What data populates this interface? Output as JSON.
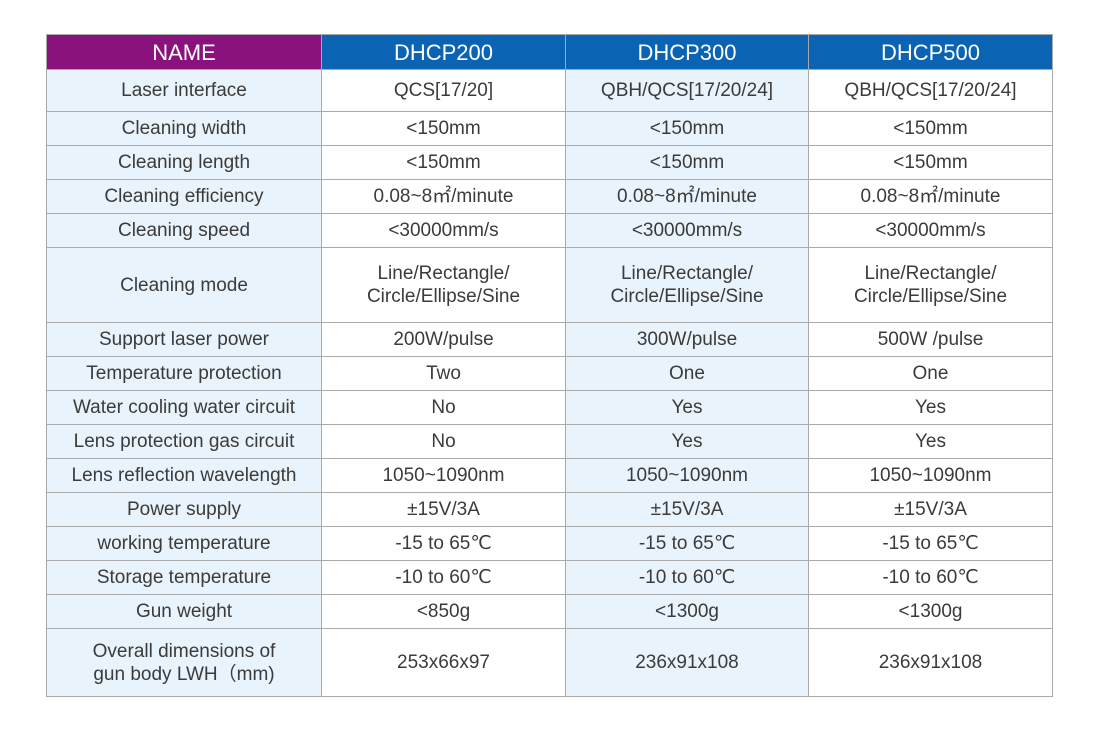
{
  "header": {
    "name_label": "NAME",
    "models": [
      "DHCP200",
      "DHCP300",
      "DHCP500"
    ]
  },
  "rows": [
    {
      "label": [
        "Laser interface"
      ],
      "values": [
        [
          "QCS[17/20]"
        ],
        [
          "QBH/QCS[17/20/24]"
        ],
        [
          "QBH/QCS[17/20/24]"
        ]
      ]
    },
    {
      "label": [
        "Cleaning width"
      ],
      "values": [
        [
          "<150mm"
        ],
        [
          "<150mm"
        ],
        [
          "<150mm"
        ]
      ]
    },
    {
      "label": [
        "Cleaning length"
      ],
      "values": [
        [
          "<150mm"
        ],
        [
          "<150mm"
        ],
        [
          "<150mm"
        ]
      ]
    },
    {
      "label": [
        "Cleaning efficiency"
      ],
      "values": [
        [
          "0.08~8㎡/minute"
        ],
        [
          "0.08~8㎡/minute"
        ],
        [
          "0.08~8㎡/minute"
        ]
      ]
    },
    {
      "label": [
        "Cleaning speed"
      ],
      "values": [
        [
          "<30000mm/s"
        ],
        [
          "<30000mm/s"
        ],
        [
          "<30000mm/s"
        ]
      ]
    },
    {
      "label": [
        "Cleaning mode"
      ],
      "values": [
        [
          "Line/Rectangle/",
          "Circle/Ellipse/Sine"
        ],
        [
          "Line/Rectangle/",
          "Circle/Ellipse/Sine"
        ],
        [
          "Line/Rectangle/",
          "Circle/Ellipse/Sine"
        ]
      ]
    },
    {
      "label": [
        "Support laser power"
      ],
      "values": [
        [
          "200W/pulse"
        ],
        [
          "300W/pulse"
        ],
        [
          "500W /pulse"
        ]
      ]
    },
    {
      "label": [
        "Temperature protection"
      ],
      "values": [
        [
          "Two"
        ],
        [
          "One"
        ],
        [
          "One"
        ]
      ]
    },
    {
      "label": [
        "Water cooling water circuit"
      ],
      "values": [
        [
          "No"
        ],
        [
          "Yes"
        ],
        [
          "Yes"
        ]
      ]
    },
    {
      "label": [
        "Lens protection gas circuit"
      ],
      "values": [
        [
          "No"
        ],
        [
          "Yes"
        ],
        [
          "Yes"
        ]
      ]
    },
    {
      "label": [
        "Lens reflection wavelength"
      ],
      "values": [
        [
          "1050~1090nm"
        ],
        [
          "1050~1090nm"
        ],
        [
          "1050~1090nm"
        ]
      ]
    },
    {
      "label": [
        "Power supply"
      ],
      "values": [
        [
          "±15V/3A"
        ],
        [
          "±15V/3A"
        ],
        [
          "±15V/3A"
        ]
      ]
    },
    {
      "label": [
        "working temperature"
      ],
      "values": [
        [
          "-15 to 65℃"
        ],
        [
          "-15 to 65℃"
        ],
        [
          "-15 to 65℃"
        ]
      ]
    },
    {
      "label": [
        "Storage temperature"
      ],
      "values": [
        [
          "-10 to 60℃"
        ],
        [
          "-10 to 60℃"
        ],
        [
          "-10 to 60℃"
        ]
      ]
    },
    {
      "label": [
        "Gun weight"
      ],
      "values": [
        [
          "<850g"
        ],
        [
          "<1300g"
        ],
        [
          "<1300g"
        ]
      ]
    },
    {
      "label": [
        "Overall dimensions of",
        "gun body LWH（mm)"
      ],
      "values": [
        [
          "253x66x97"
        ],
        [
          "236x91x108"
        ],
        [
          "236x91x108"
        ]
      ]
    }
  ],
  "colors": {
    "name_header": "#8a127d",
    "model_header": "#0a63b3",
    "label_cell": "#e8f3fb",
    "value_cell": "#ffffff",
    "alt_value_cell": "#e8f3fb",
    "border": "#a9a9a9"
  }
}
